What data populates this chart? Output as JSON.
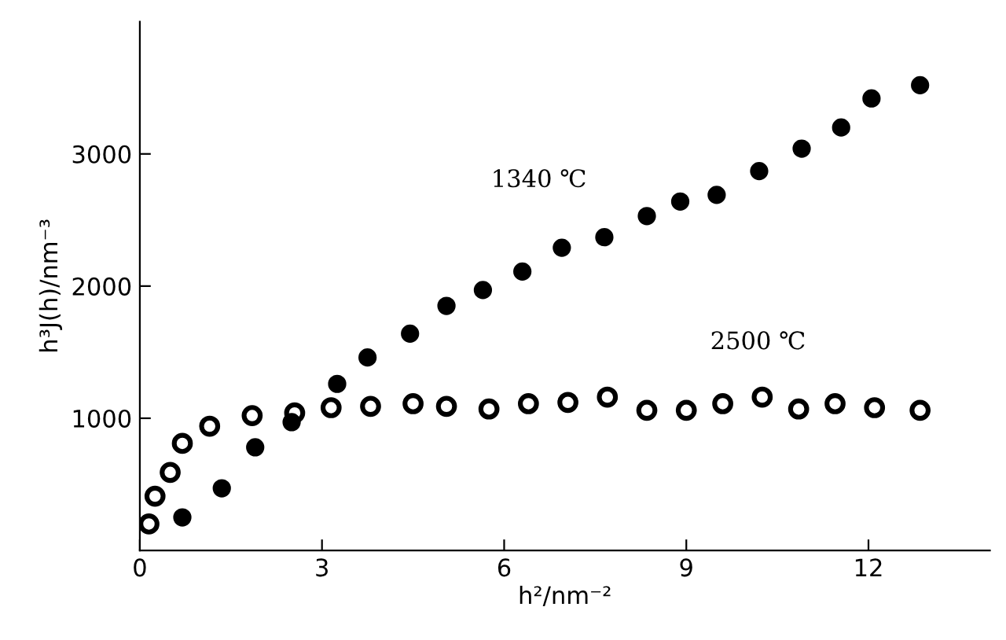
{
  "chart_data": {
    "type": "scatter",
    "xlabel": "h²/nm⁻²",
    "ylabel": "h³J(h)/nm⁻³",
    "xlim": [
      0,
      14
    ],
    "xticks": [
      0,
      3,
      6,
      9,
      12
    ],
    "ylim": [
      0,
      4000
    ],
    "yticks": [
      1000,
      2000,
      3000
    ],
    "grid": false,
    "legend": false,
    "marker": "circle",
    "series": [
      {
        "name": "1340 ℃",
        "color": "#000000",
        "x": [
          0.7,
          1.35,
          1.9,
          2.5,
          3.25,
          3.75,
          4.45,
          5.05,
          5.65,
          6.3,
          6.95,
          7.65,
          8.35,
          8.9,
          9.5,
          10.2,
          10.9,
          11.55,
          12.05,
          12.85
        ],
        "values": [
          250,
          470,
          780,
          970,
          1260,
          1460,
          1640,
          1850,
          1970,
          2110,
          2290,
          2370,
          2530,
          2640,
          2690,
          2870,
          3040,
          3200,
          3420,
          3520
        ]
      },
      {
        "name": "2500 ℃",
        "color": "#000000",
        "x": [
          0.15,
          0.25,
          0.5,
          0.7,
          1.15,
          1.85,
          2.55,
          3.15,
          3.8,
          4.5,
          5.05,
          5.75,
          6.4,
          7.05,
          7.7,
          8.35,
          9.0,
          9.6,
          10.25,
          10.85,
          11.45,
          12.1,
          12.85
        ],
        "values": [
          200,
          410,
          590,
          810,
          940,
          1020,
          1040,
          1080,
          1090,
          1110,
          1090,
          1070,
          1110,
          1120,
          1160,
          1060,
          1060,
          1110,
          1160,
          1070,
          1110,
          1080,
          1060
        ]
      }
    ]
  }
}
